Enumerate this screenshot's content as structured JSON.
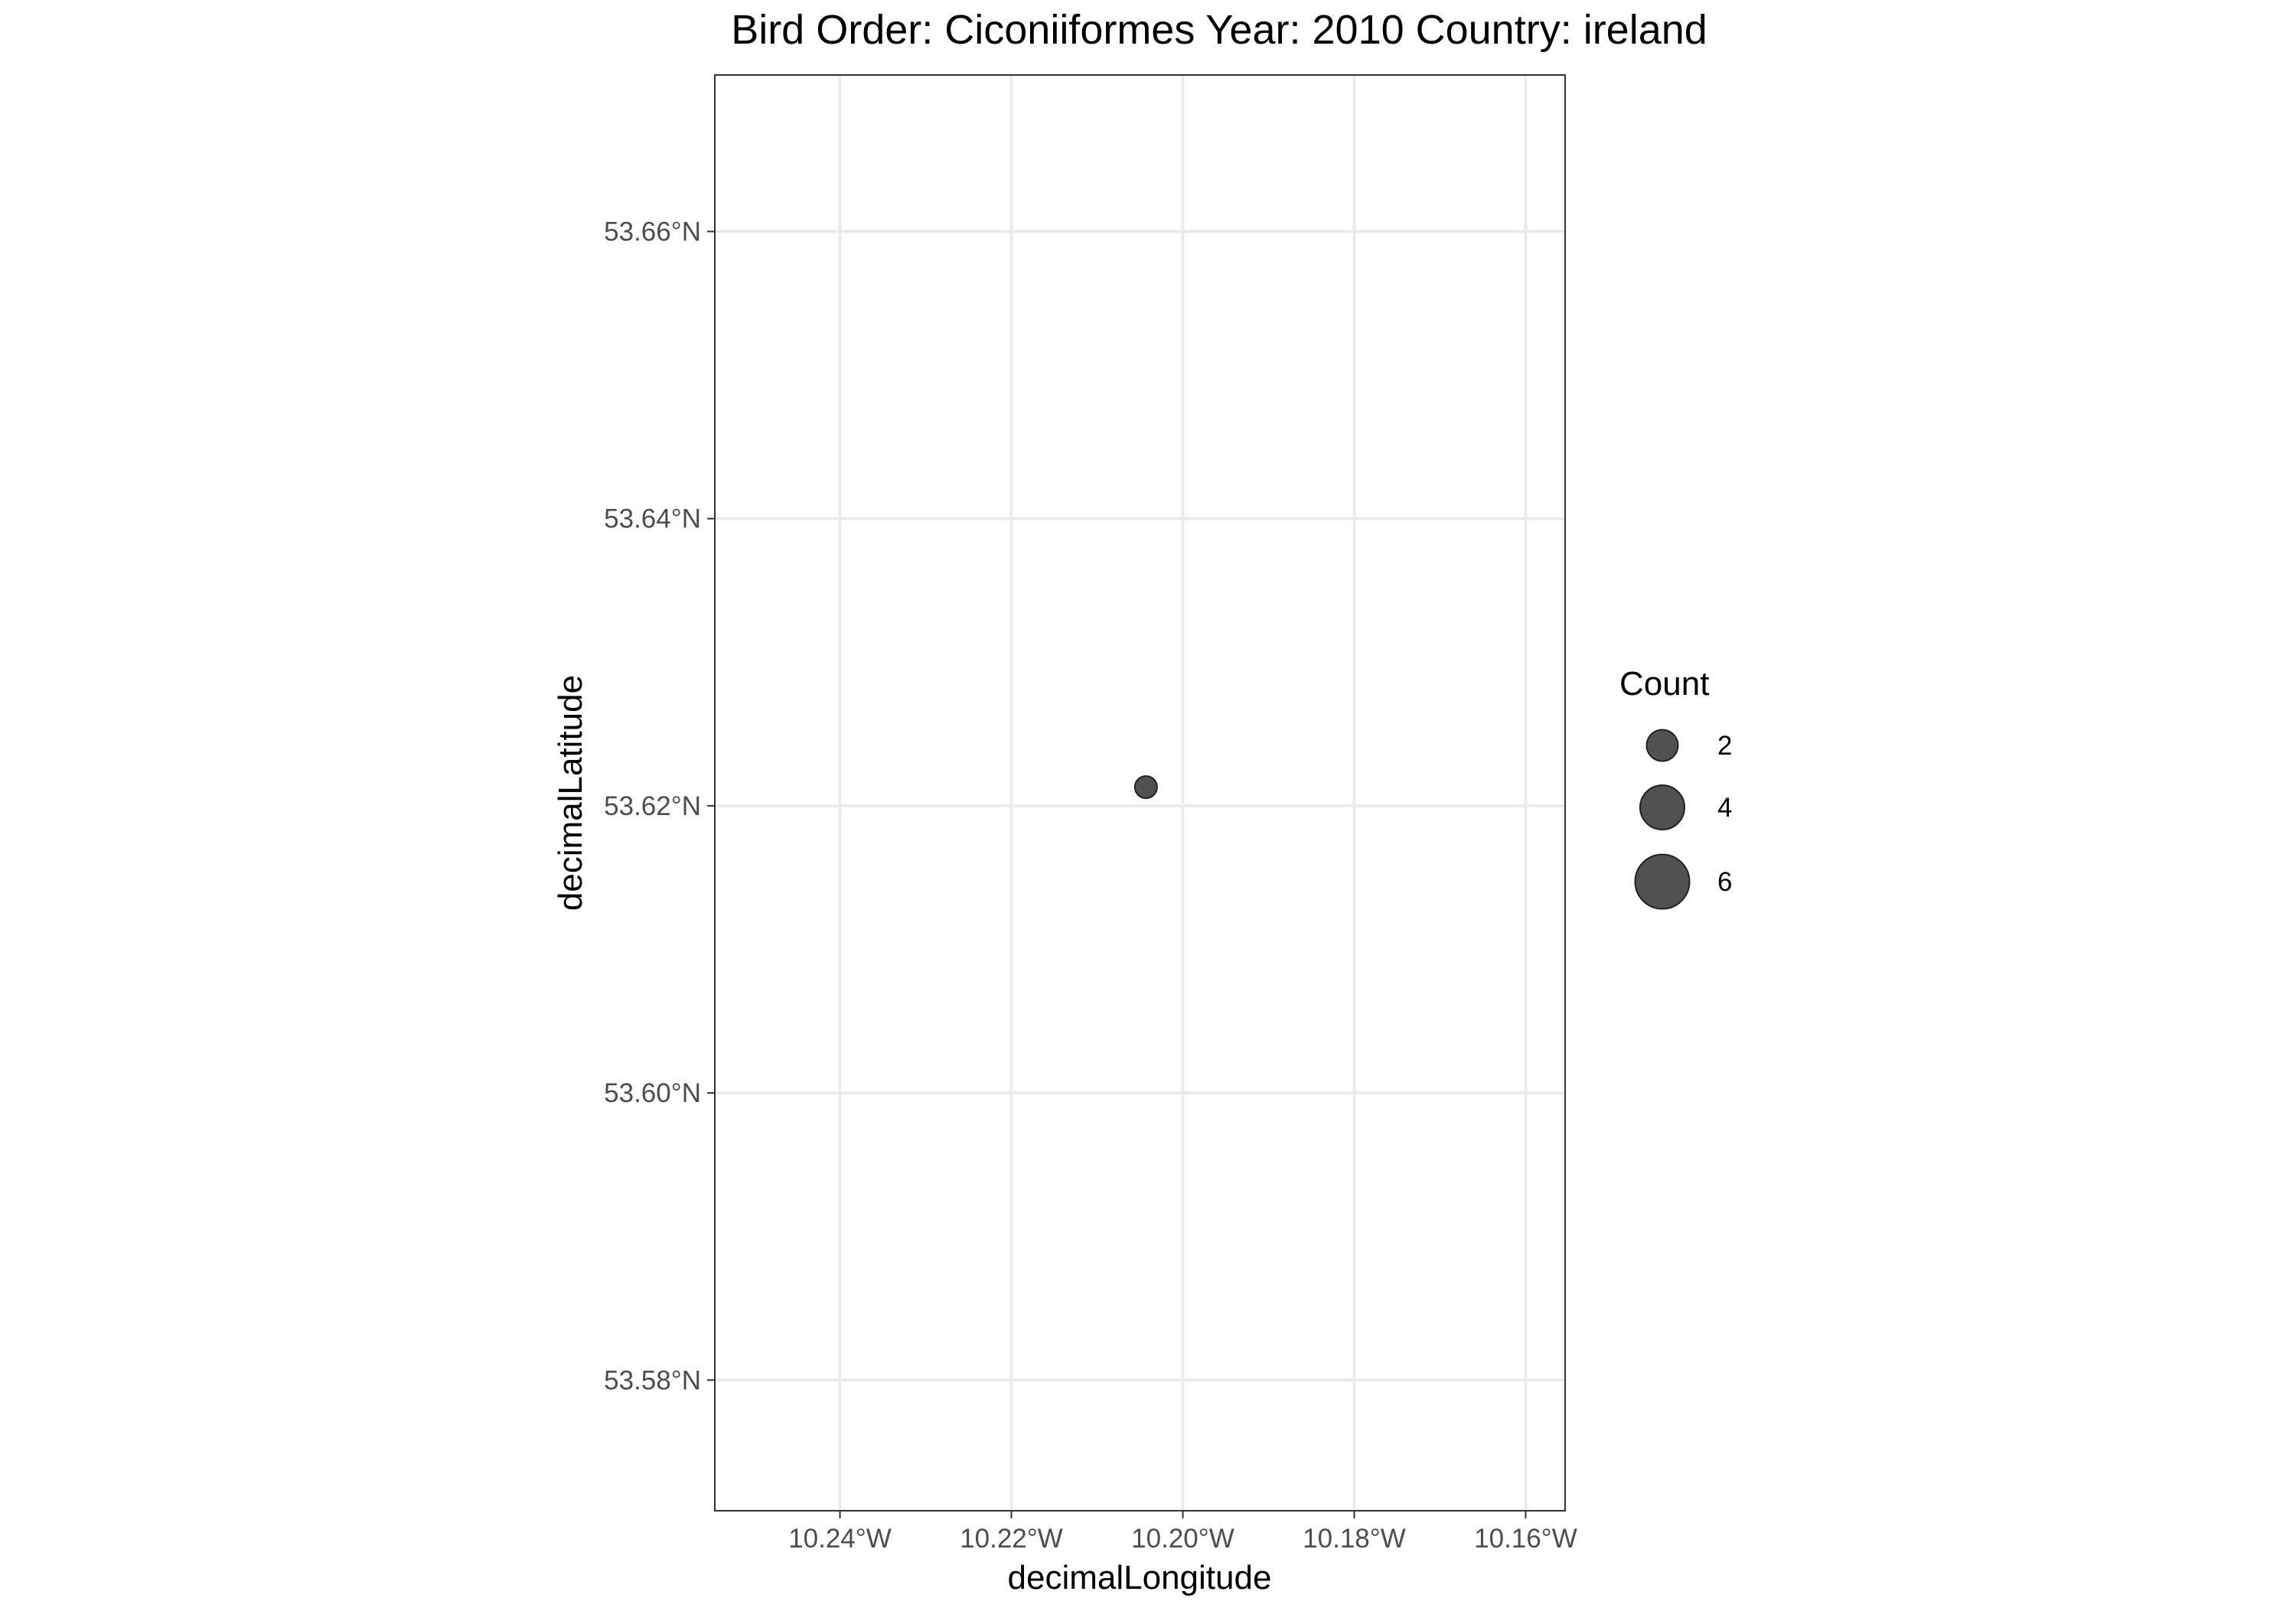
{
  "chart_data": {
    "type": "scatter",
    "title": "Bird Order: Ciconiiformes Year: 2010 Country: ireland",
    "xlabel": "decimalLongitude",
    "ylabel": "decimalLatitude",
    "xlim": [
      -10.2546,
      -10.1554
    ],
    "ylim": [
      53.5709,
      53.6709
    ],
    "x_ticks": [
      {
        "value": -10.24,
        "label": "10.24°W"
      },
      {
        "value": -10.22,
        "label": "10.22°W"
      },
      {
        "value": -10.2,
        "label": "10.20°W"
      },
      {
        "value": -10.18,
        "label": "10.18°W"
      },
      {
        "value": -10.16,
        "label": "10.16°W"
      }
    ],
    "y_ticks": [
      {
        "value": 53.58,
        "label": "53.58°N"
      },
      {
        "value": 53.6,
        "label": "53.60°N"
      },
      {
        "value": 53.62,
        "label": "53.62°N"
      },
      {
        "value": 53.64,
        "label": "53.64°N"
      },
      {
        "value": 53.66,
        "label": "53.66°N"
      }
    ],
    "grid": true,
    "points": [
      {
        "x": -10.2043,
        "y": 53.6213,
        "count": 1
      }
    ],
    "point_color": "#333333",
    "point_alpha": 0.85,
    "legend": {
      "title": "Count",
      "position": "right",
      "entries": [
        {
          "value": 2,
          "label": "2"
        },
        {
          "value": 4,
          "label": "4"
        },
        {
          "value": 6,
          "label": "6"
        }
      ]
    }
  }
}
